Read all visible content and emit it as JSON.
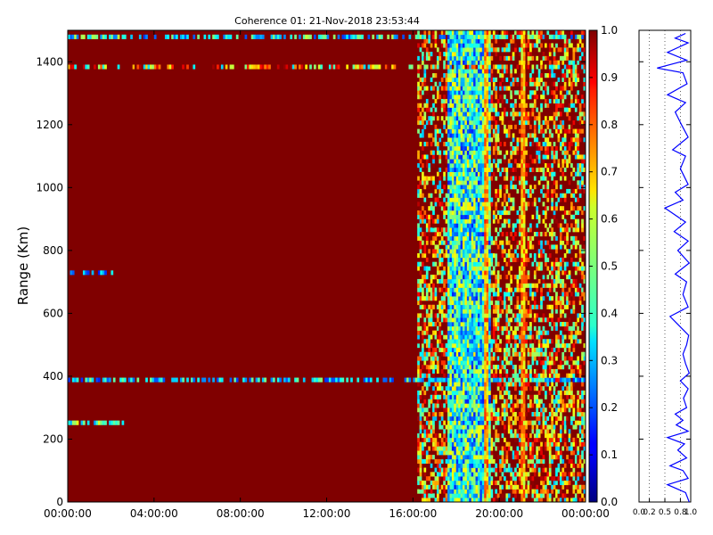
{
  "chart_data": [
    {
      "type": "heatmap",
      "title": "Coherence 01: 21-Nov-2018 23:53:44",
      "xlabel": "",
      "ylabel": "Range (Km)",
      "x_ticks": [
        "00:00:00",
        "04:00:00",
        "08:00:00",
        "12:00:00",
        "16:00:00",
        "20:00:00",
        "00:00:00"
      ],
      "x_range_hours": [
        0,
        24
      ],
      "ylim": [
        0,
        1500
      ],
      "y_ticks": [
        0,
        200,
        400,
        600,
        800,
        1000,
        1200,
        1400
      ],
      "colorbar": {
        "colormap": "jet",
        "range": [
          0.0,
          1.0
        ],
        "ticks": [
          "0.0",
          "0.1",
          "0.2",
          "0.3",
          "0.4",
          "0.5",
          "0.6",
          "0.7",
          "0.8",
          "0.9",
          "1.0"
        ]
      },
      "background_value": 1.0,
      "horizontal_bands": [
        {
          "range_km": 1475,
          "x_start_h": 0,
          "x_end_h": 24,
          "intensity": 0.45
        },
        {
          "range_km": 1380,
          "x_start_h": 0,
          "x_end_h": 24,
          "intensity": 0.8
        },
        {
          "range_km": 725,
          "x_start_h": 0,
          "x_end_h": 2.2,
          "intensity": 0.35
        },
        {
          "range_km": 390,
          "x_start_h": 0,
          "x_end_h": 24,
          "intensity": 0.4
        },
        {
          "range_km": 250,
          "x_start_h": 0,
          "x_end_h": 2.6,
          "intensity": 0.5
        }
      ],
      "low_coherence_region": {
        "x_start_h": 16.2,
        "x_end_h": 24,
        "center_h": 18.6,
        "typical_value": 0.4
      },
      "vertical_streaks_h": [
        19.4,
        21.1
      ]
    },
    {
      "type": "line",
      "title": "",
      "xlabel": "",
      "ylabel": "",
      "xlim": [
        0.0,
        1.0
      ],
      "x_ticks": [
        "0.0",
        "0.2",
        "0.5",
        "0.8",
        "1.0"
      ],
      "ylim": [
        0,
        1500
      ],
      "y_ticks": [
        0,
        200,
        400,
        600,
        800,
        1000,
        1200,
        1400
      ],
      "series": [
        {
          "color": "#0000ff",
          "values": [
            [
              0.97,
              0
            ],
            [
              0.9,
              30
            ],
            [
              0.55,
              55
            ],
            [
              0.95,
              75
            ],
            [
              0.85,
              100
            ],
            [
              0.6,
              115
            ],
            [
              0.92,
              140
            ],
            [
              0.75,
              165
            ],
            [
              0.88,
              185
            ],
            [
              0.55,
              205
            ],
            [
              0.95,
              225
            ],
            [
              0.72,
              245
            ],
            [
              0.85,
              260
            ],
            [
              0.7,
              280
            ],
            [
              0.92,
              300
            ],
            [
              0.86,
              330
            ],
            [
              0.95,
              360
            ],
            [
              0.8,
              385
            ],
            [
              0.97,
              410
            ],
            [
              0.9,
              440
            ],
            [
              0.85,
              470
            ],
            [
              0.92,
              500
            ],
            [
              0.96,
              530
            ],
            [
              0.6,
              590
            ],
            [
              0.95,
              620
            ],
            [
              0.85,
              660
            ],
            [
              0.92,
              700
            ],
            [
              0.7,
              725
            ],
            [
              0.97,
              760
            ],
            [
              0.75,
              800
            ],
            [
              0.95,
              830
            ],
            [
              0.68,
              860
            ],
            [
              0.9,
              890
            ],
            [
              0.5,
              935
            ],
            [
              0.85,
              960
            ],
            [
              0.7,
              985
            ],
            [
              0.95,
              1010
            ],
            [
              0.8,
              1060
            ],
            [
              0.9,
              1100
            ],
            [
              0.65,
              1120
            ],
            [
              0.95,
              1160
            ],
            [
              0.82,
              1200
            ],
            [
              0.7,
              1240
            ],
            [
              0.9,
              1270
            ],
            [
              0.55,
              1295
            ],
            [
              0.93,
              1330
            ],
            [
              0.85,
              1365
            ],
            [
              0.35,
              1380
            ],
            [
              0.92,
              1405
            ],
            [
              0.55,
              1430
            ],
            [
              0.95,
              1460
            ],
            [
              0.7,
              1475
            ],
            [
              0.9,
              1490
            ]
          ]
        }
      ]
    }
  ]
}
